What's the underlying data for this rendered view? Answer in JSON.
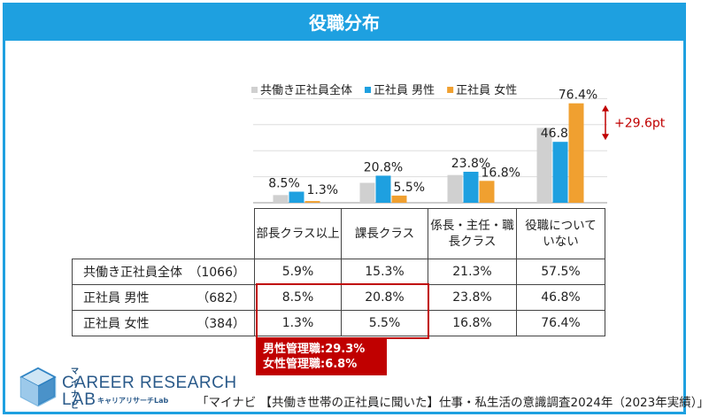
{
  "title": "役職分布",
  "chart_data": {
    "type": "bar",
    "categories": [
      "部長クラス以上",
      "課長クラス",
      "係長・主任・職長クラス",
      "役職についていない"
    ],
    "series": [
      {
        "name": "共働き正社員全体",
        "color": "#d0d0d0",
        "values": [
          5.9,
          15.3,
          21.3,
          57.5
        ],
        "labels": [
          "",
          "",
          "",
          ""
        ]
      },
      {
        "name": "正社員 男性",
        "color": "#1ea0e0",
        "values": [
          8.5,
          20.8,
          23.8,
          46.8
        ],
        "labels": [
          "8.5%",
          "20.8%",
          "23.8%",
          "46.8%"
        ]
      },
      {
        "name": "正社員 女性",
        "color": "#f0a030",
        "values": [
          1.3,
          5.5,
          16.8,
          76.4
        ],
        "labels": [
          "1.3%",
          "5.5%",
          "16.8%",
          "76.4%"
        ]
      }
    ],
    "ylim": [
      0,
      80
    ],
    "annotation": "+29.6pt"
  },
  "table": {
    "headers": [
      "部長クラス以上",
      "課長クラス",
      "係長・主任・職\n長クラス",
      "役職について\nいない"
    ],
    "rows": [
      {
        "label": "共働き正社員全体",
        "n": "（1066）",
        "cells": [
          "5.9%",
          "15.3%",
          "21.3%",
          "57.5%"
        ]
      },
      {
        "label": "正社員 男性",
        "n": "（682）",
        "cells": [
          "8.5%",
          "20.8%",
          "23.8%",
          "46.8%"
        ]
      },
      {
        "label": "正社員 女性",
        "n": "（384）",
        "cells": [
          "1.3%",
          "5.5%",
          "16.8%",
          "76.4%"
        ]
      }
    ]
  },
  "management": {
    "male": "男性管理職:29.3%",
    "female": "女性管理職:6.8%"
  },
  "logo": {
    "small": "マイナビ",
    "main": "CAREER RESEARCH",
    "lab": "LAB",
    "kana": "キャリアリサーチLab"
  },
  "source": "「マイナビ 【共働き世帯の正社員に聞いた】仕事・私生活の意識調査2024年（2023年実績）」"
}
